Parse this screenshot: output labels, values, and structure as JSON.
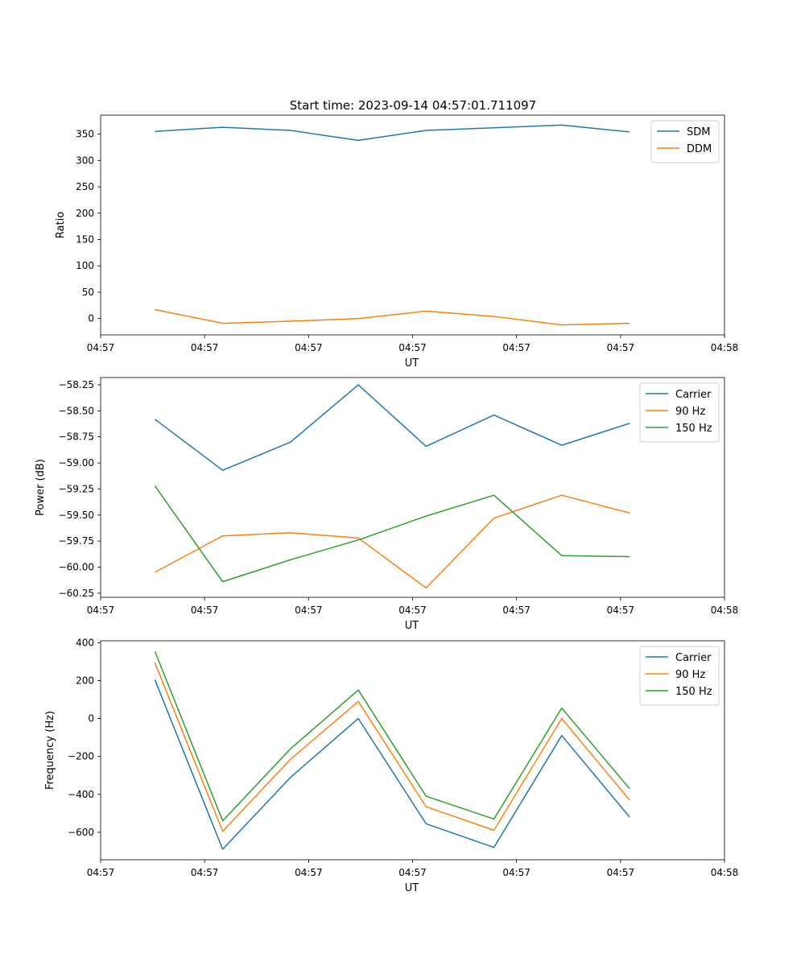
{
  "figure": {
    "title": "Start time: 2023-09-14 04:57:01.711097"
  },
  "colors": {
    "blue": "#1f77b4",
    "orange": "#ff7f0e",
    "green": "#2ca02c"
  },
  "chart_data": [
    {
      "type": "line",
      "title": "Start time: 2023-09-14 04:57:01.711097",
      "xlabel": "UT",
      "ylabel": "Ratio",
      "x": [
        1,
        2,
        3,
        4,
        5,
        6,
        7,
        8
      ],
      "xlim": [
        0.2,
        9.4
      ],
      "xticks": [
        0.2,
        1.733,
        3.267,
        4.8,
        6.333,
        7.867,
        9.4
      ],
      "xtick_labels": [
        "04:57",
        "04:57",
        "04:57",
        "04:57",
        "04:57",
        "04:57",
        "04:58"
      ],
      "ylim": [
        -31,
        386
      ],
      "yticks": [
        0,
        50,
        100,
        150,
        200,
        250,
        300,
        350
      ],
      "ytick_labels": [
        "0",
        "50",
        "100",
        "150",
        "200",
        "250",
        "300",
        "350"
      ],
      "legend": "top-right",
      "series": [
        {
          "name": "SDM",
          "color": "#1f77b4",
          "values": [
            355,
            363,
            357,
            338,
            357,
            362,
            367,
            354
          ]
        },
        {
          "name": "DDM",
          "color": "#ff7f0e",
          "values": [
            17,
            -9,
            -5,
            0,
            14,
            4,
            -12,
            -9
          ]
        }
      ]
    },
    {
      "type": "line",
      "title": "",
      "xlabel": "UT",
      "ylabel": "Power (dB)",
      "x": [
        1,
        2,
        3,
        4,
        5,
        6,
        7,
        8
      ],
      "xlim": [
        0.2,
        9.4
      ],
      "xticks": [
        0.2,
        1.733,
        3.267,
        4.8,
        6.333,
        7.867,
        9.4
      ],
      "xtick_labels": [
        "04:57",
        "04:57",
        "04:57",
        "04:57",
        "04:57",
        "04:57",
        "04:58"
      ],
      "ylim": [
        -60.29,
        -58.18
      ],
      "yticks": [
        -60.25,
        -60.0,
        -59.75,
        -59.5,
        -59.25,
        -59.0,
        -58.75,
        -58.5,
        -58.25
      ],
      "ytick_labels": [
        "−60.25",
        "−60.00",
        "−59.75",
        "−59.50",
        "−59.25",
        "−59.00",
        "−58.75",
        "−58.50",
        "−58.25"
      ],
      "legend": "top-right",
      "series": [
        {
          "name": "Carrier",
          "color": "#1f77b4",
          "values": [
            -58.58,
            -59.07,
            -58.8,
            -58.25,
            -58.84,
            -58.54,
            -58.83,
            -58.62
          ]
        },
        {
          "name": "90 Hz",
          "color": "#ff7f0e",
          "values": [
            -60.05,
            -59.7,
            -59.67,
            -59.72,
            -60.2,
            -59.53,
            -59.31,
            -59.48
          ]
        },
        {
          "name": "150 Hz",
          "color": "#2ca02c",
          "values": [
            -59.22,
            -60.14,
            -59.93,
            -59.74,
            -59.51,
            -59.31,
            -59.89,
            -59.9
          ]
        }
      ]
    },
    {
      "type": "line",
      "title": "",
      "xlabel": "UT",
      "ylabel": "Frequency (Hz)",
      "x": [
        1,
        2,
        3,
        4,
        5,
        6,
        7,
        8
      ],
      "xlim": [
        0.2,
        9.4
      ],
      "xticks": [
        0.2,
        1.733,
        3.267,
        4.8,
        6.333,
        7.867,
        9.4
      ],
      "xtick_labels": [
        "04:57",
        "04:57",
        "04:57",
        "04:57",
        "04:57",
        "04:57",
        "04:58"
      ],
      "ylim": [
        -745,
        410
      ],
      "yticks": [
        -600,
        -400,
        -200,
        0,
        200,
        400
      ],
      "ytick_labels": [
        "−600",
        "−400",
        "−200",
        "0",
        "200",
        "400"
      ],
      "legend": "top-right",
      "series": [
        {
          "name": "Carrier",
          "color": "#1f77b4",
          "values": [
            205,
            -690,
            -310,
            0,
            -555,
            -680,
            -90,
            -520
          ]
        },
        {
          "name": "90 Hz",
          "color": "#ff7f0e",
          "values": [
            295,
            -595,
            -215,
            90,
            -465,
            -590,
            0,
            -430
          ]
        },
        {
          "name": "150 Hz",
          "color": "#2ca02c",
          "values": [
            355,
            -540,
            -160,
            150,
            -410,
            -530,
            55,
            -370
          ]
        }
      ]
    }
  ]
}
